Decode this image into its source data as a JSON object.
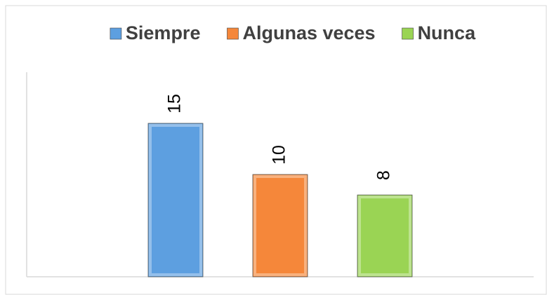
{
  "chart_data": {
    "type": "bar",
    "categories": [
      null
    ],
    "series": [
      {
        "name": "Siempre",
        "color": "#5d9fe0",
        "values": [
          15
        ]
      },
      {
        "name": "Algunas veces",
        "color": "#f5873a",
        "values": [
          10
        ]
      },
      {
        "name": "Nunca",
        "color": "#9ad454",
        "values": [
          8
        ]
      }
    ],
    "ylim": [
      0,
      20
    ],
    "legend": "top"
  }
}
